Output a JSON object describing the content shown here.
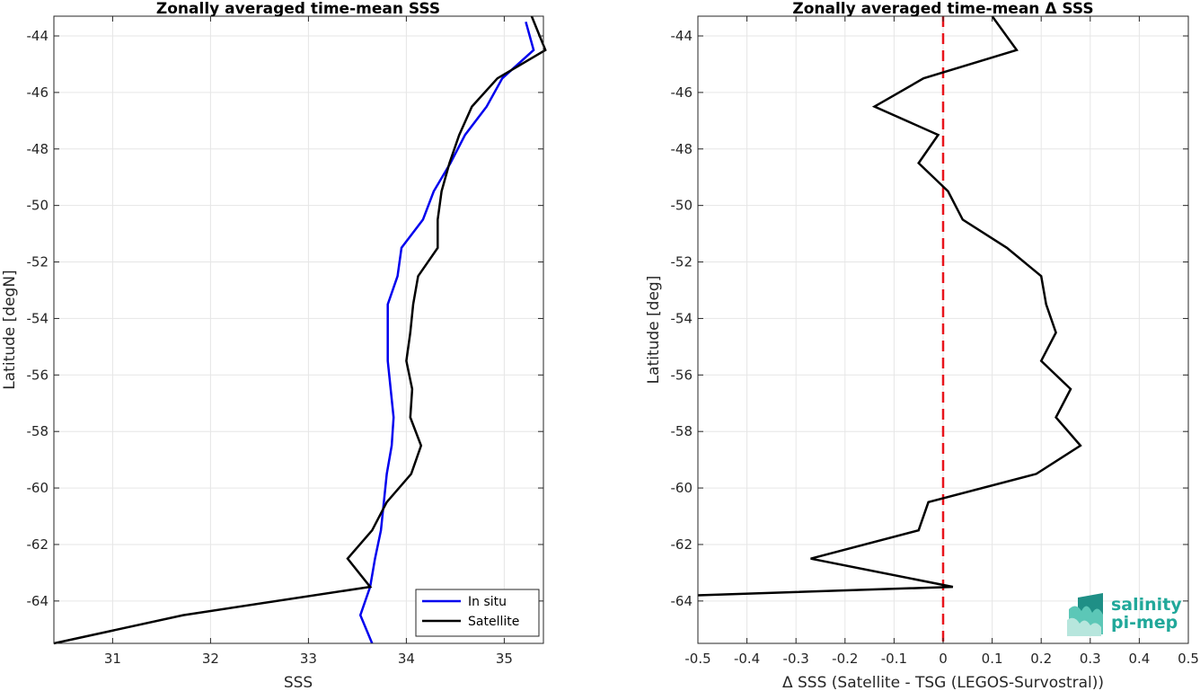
{
  "chart_data": [
    {
      "type": "line",
      "title": "Zonally averaged time-mean SSS",
      "xlabel": "SSS",
      "ylabel": "Latitude [degN]",
      "xlim": [
        30.4,
        35.4
      ],
      "ylim": [
        -65.5,
        -43.3
      ],
      "xticks": [
        31,
        32,
        33,
        34,
        35
      ],
      "yticks": [
        -44,
        -46,
        -48,
        -50,
        -52,
        -54,
        -56,
        -58,
        -60,
        -62,
        -64
      ],
      "grid": true,
      "legend_position": "bottom-right",
      "series": [
        {
          "name": "In situ",
          "color": "#0000ee",
          "x": [
            35.22,
            35.3,
            34.98,
            34.82,
            34.6,
            34.45,
            34.28,
            34.17,
            33.95,
            33.91,
            33.81,
            33.81,
            33.81,
            33.87,
            33.85,
            33.8,
            33.74,
            33.68,
            33.63,
            33.53,
            33.65
          ],
          "y": [
            -43.5,
            -44.5,
            -45.5,
            -46.5,
            -47.5,
            -48.5,
            -49.5,
            -50.5,
            -51.5,
            -52.5,
            -53.5,
            -54.5,
            -55.5,
            -57.5,
            -58.5,
            -59.5,
            -61.5,
            -62.5,
            -63.5,
            -64.5,
            -65.5
          ]
        },
        {
          "name": "Satellite",
          "color": "#000000",
          "x": [
            35.28,
            35.42,
            34.93,
            34.67,
            34.54,
            34.44,
            34.36,
            34.32,
            34.32,
            34.12,
            34.07,
            34.04,
            34.0,
            34.06,
            34.04,
            34.15,
            34.05,
            33.8,
            33.65,
            33.4,
            33.63,
            31.72,
            30.4
          ],
          "y": [
            -43.3,
            -44.5,
            -45.5,
            -46.5,
            -47.5,
            -48.5,
            -49.5,
            -50.5,
            -51.5,
            -52.5,
            -53.5,
            -54.5,
            -55.5,
            -56.5,
            -57.5,
            -58.5,
            -59.5,
            -60.5,
            -61.5,
            -62.5,
            -63.5,
            -64.5,
            -65.5
          ]
        }
      ]
    },
    {
      "type": "line",
      "title": "Zonally averaged time-mean Δ SSS",
      "xlabel": "Δ SSS (Satellite - TSG (LEGOS-Survostral))",
      "ylabel": "Latitude [deg]",
      "xlim": [
        -0.5,
        0.5
      ],
      "ylim": [
        -65.5,
        -43.3
      ],
      "xticks": [
        -0.5,
        -0.4,
        -0.3,
        -0.2,
        -0.1,
        0,
        0.1,
        0.2,
        0.3,
        0.4,
        0.5
      ],
      "xtick_labels": [
        "-0.5",
        "-0.4",
        "-0.3",
        "-0.2",
        "-0.1",
        "0",
        "0.1",
        "0.2",
        "0.3",
        "0.4",
        "0.5"
      ],
      "yticks": [
        -44,
        -46,
        -48,
        -50,
        -52,
        -54,
        -56,
        -58,
        -60,
        -62,
        -64
      ],
      "grid": true,
      "reference_line": {
        "x": 0,
        "color": "#e8141c",
        "style": "dashed"
      },
      "series": [
        {
          "color": "#000000",
          "x": [
            0.1,
            0.15,
            -0.04,
            -0.14,
            -0.01,
            -0.05,
            0.01,
            0.04,
            0.13,
            0.2,
            0.21,
            0.23,
            0.2,
            0.26,
            0.23,
            0.28,
            0.19,
            -0.03,
            -0.05,
            -0.27,
            0.02,
            -0.5
          ],
          "y": [
            -43.3,
            -44.5,
            -45.5,
            -46.5,
            -47.5,
            -48.5,
            -49.5,
            -50.5,
            -51.5,
            -52.5,
            -53.5,
            -54.5,
            -55.5,
            -56.5,
            -57.5,
            -58.5,
            -59.5,
            -60.5,
            -61.5,
            -62.5,
            -63.5,
            -63.8
          ]
        }
      ]
    }
  ],
  "logo": {
    "line1": "salinity",
    "line2": "pi-mep"
  }
}
